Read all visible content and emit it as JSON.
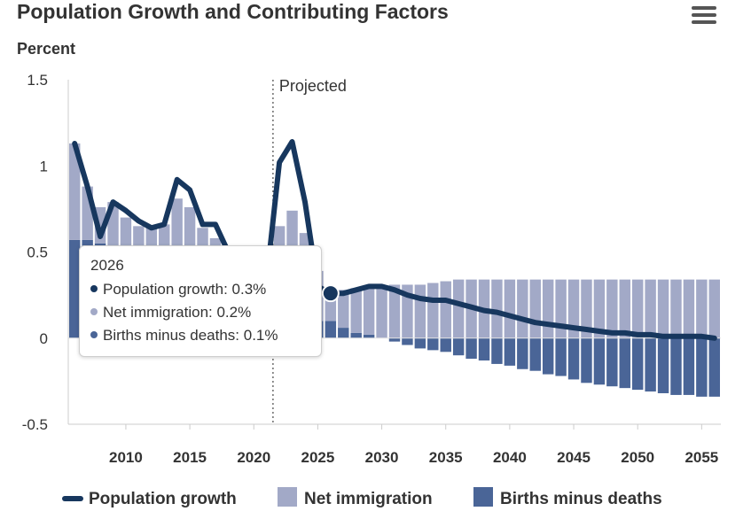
{
  "title": "Population Growth and Contributing Factors",
  "menu_icon": "hamburger-menu-icon",
  "colors": {
    "population_growth": "#17375e",
    "net_immigration": "#a2a9c7",
    "births_minus_deaths": "#4a6597",
    "axis_text": "#333333",
    "projected_line": "#555555"
  },
  "tooltip": {
    "year": "2026",
    "rows": [
      {
        "label": "Population growth: 0.3%",
        "color": "#17375e"
      },
      {
        "label": "Net immigration: 0.2%",
        "color": "#a2a9c7"
      },
      {
        "label": "Births minus deaths: 0.1%",
        "color": "#4a6597"
      }
    ]
  },
  "chart_data": {
    "type": "bar",
    "title": "Population Growth and Contributing Factors",
    "ylabel": "Percent",
    "xlabel": "",
    "ylim": [
      -0.5,
      1.5
    ],
    "yticks": [
      -0.5,
      0,
      0.5,
      1,
      1.5
    ],
    "ytick_labels": [
      "-0.5",
      "0",
      "0.5",
      "1",
      "1.5"
    ],
    "xlim": [
      2005.5,
      2056.5
    ],
    "xticks": [
      2010,
      2015,
      2020,
      2025,
      2030,
      2035,
      2040,
      2045,
      2050,
      2055
    ],
    "projected_start": 2021.5,
    "projected_label": "Projected",
    "legend_position": "bottom",
    "x": [
      2006,
      2007,
      2008,
      2009,
      2010,
      2011,
      2012,
      2013,
      2014,
      2015,
      2016,
      2017,
      2018,
      2019,
      2020,
      2021,
      2022,
      2023,
      2024,
      2025,
      2026,
      2027,
      2028,
      2029,
      2030,
      2031,
      2032,
      2033,
      2034,
      2035,
      2036,
      2037,
      2038,
      2039,
      2040,
      2041,
      2042,
      2043,
      2044,
      2045,
      2046,
      2047,
      2048,
      2049,
      2050,
      2051,
      2052,
      2053,
      2054,
      2055,
      2056
    ],
    "series": [
      {
        "name": "Net immigration",
        "kind": "bar",
        "values": [
          0.56,
          0.31,
          0.21,
          0.27,
          0.25,
          0.2,
          0.22,
          0.26,
          0.4,
          0.36,
          0.26,
          0.23,
          0.15,
          0.12,
          0.08,
          0.03,
          0.55,
          0.64,
          0.51,
          0.29,
          0.2,
          0.22,
          0.26,
          0.28,
          0.3,
          0.31,
          0.31,
          0.31,
          0.32,
          0.33,
          0.34,
          0.34,
          0.34,
          0.34,
          0.34,
          0.34,
          0.34,
          0.34,
          0.34,
          0.34,
          0.34,
          0.34,
          0.34,
          0.34,
          0.34,
          0.34,
          0.34,
          0.34,
          0.34,
          0.34,
          0.34
        ]
      },
      {
        "name": "Births minus deaths",
        "kind": "bar",
        "values": [
          0.57,
          0.57,
          0.55,
          0.52,
          0.45,
          0.45,
          0.42,
          0.4,
          0.41,
          0.4,
          0.38,
          0.35,
          0.3,
          0.27,
          0.12,
          0.06,
          0.1,
          0.1,
          0.1,
          0.1,
          0.1,
          0.06,
          0.03,
          0.02,
          0.0,
          -0.02,
          -0.04,
          -0.06,
          -0.07,
          -0.08,
          -0.1,
          -0.12,
          -0.13,
          -0.15,
          -0.16,
          -0.18,
          -0.19,
          -0.21,
          -0.22,
          -0.24,
          -0.26,
          -0.27,
          -0.28,
          -0.29,
          -0.3,
          -0.31,
          -0.32,
          -0.33,
          -0.33,
          -0.34,
          -0.34
        ]
      },
      {
        "name": "Population growth",
        "kind": "line",
        "values": [
          1.13,
          0.88,
          0.59,
          0.79,
          0.74,
          0.68,
          0.64,
          0.66,
          0.92,
          0.86,
          0.66,
          0.66,
          0.5,
          0.4,
          0.35,
          0.34,
          1.02,
          1.14,
          0.79,
          0.3,
          0.26,
          0.26,
          0.28,
          0.3,
          0.3,
          0.28,
          0.25,
          0.23,
          0.22,
          0.22,
          0.2,
          0.18,
          0.16,
          0.15,
          0.13,
          0.11,
          0.09,
          0.08,
          0.07,
          0.06,
          0.05,
          0.04,
          0.03,
          0.03,
          0.02,
          0.02,
          0.01,
          0.01,
          0.01,
          0.01,
          0.0
        ]
      }
    ]
  }
}
